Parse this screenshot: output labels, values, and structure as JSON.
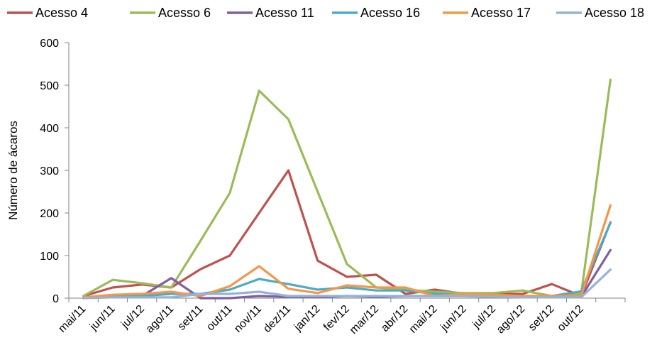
{
  "chart_data": {
    "type": "line",
    "title": "",
    "xlabel": "",
    "ylabel": "Número de ácaros",
    "ylim": [
      0,
      600
    ],
    "yticks": [
      "0",
      "100",
      "200",
      "300",
      "400",
      "500",
      "600"
    ],
    "ytick_values": [
      0,
      100,
      200,
      300,
      400,
      500,
      600
    ],
    "categories": [
      "mai/11",
      "jun/11",
      "jul/12",
      "ago/11",
      "set/11",
      "out/11",
      "nov/11",
      "dez/11",
      "jan/12",
      "fev/12",
      "mar/12",
      "abr/12",
      "mai/12",
      "jun/12",
      "jul/12",
      "ago/12",
      "set/12",
      "out/12",
      ""
    ],
    "grid": false,
    "legend_position": "top",
    "series": [
      {
        "name": "Acesso  4",
        "color": "#c0504d",
        "values": [
          5,
          25,
          32,
          25,
          68,
          100,
          200,
          300,
          88,
          50,
          55,
          10,
          20,
          10,
          10,
          10,
          33,
          5,
          178
        ]
      },
      {
        "name": "Acesso 6",
        "color": "#9bbb59",
        "values": [
          5,
          43,
          35,
          25,
          135,
          247,
          487,
          420,
          250,
          80,
          25,
          20,
          15,
          12,
          12,
          18,
          5,
          10,
          513
        ]
      },
      {
        "name": "Acesso 11",
        "color": "#7f5fa0",
        "values": [
          0,
          5,
          5,
          47,
          0,
          0,
          5,
          3,
          2,
          5,
          3,
          5,
          5,
          5,
          3,
          3,
          3,
          3,
          113
        ]
      },
      {
        "name": "Acesso 16",
        "color": "#4aacc6",
        "values": [
          2,
          5,
          5,
          10,
          10,
          20,
          45,
          33,
          20,
          25,
          18,
          18,
          10,
          8,
          8,
          5,
          5,
          16,
          177
        ]
      },
      {
        "name": "Acesso 17",
        "color": "#f79646",
        "values": [
          2,
          8,
          10,
          15,
          5,
          28,
          75,
          22,
          12,
          30,
          25,
          25,
          5,
          10,
          8,
          5,
          5,
          5,
          218
        ]
      },
      {
        "name": "Acesso 18",
        "color": "#95b3d7",
        "values": [
          0,
          2,
          2,
          2,
          10,
          10,
          15,
          5,
          5,
          5,
          5,
          5,
          5,
          5,
          3,
          2,
          2,
          2,
          67
        ]
      }
    ]
  }
}
